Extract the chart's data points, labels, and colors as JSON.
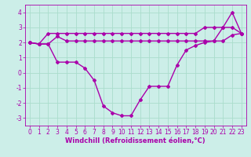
{
  "bg_color": "#cceee8",
  "grid_color": "#aaddcc",
  "line_color": "#aa00aa",
  "marker": "D",
  "markersize": 2.0,
  "linewidth": 1.0,
  "xlim": [
    -0.5,
    23.5
  ],
  "ylim": [
    -3.5,
    4.5
  ],
  "yticks": [
    -3,
    -2,
    -1,
    0,
    1,
    2,
    3,
    4
  ],
  "xticks": [
    0,
    1,
    2,
    3,
    4,
    5,
    6,
    7,
    8,
    9,
    10,
    11,
    12,
    13,
    14,
    15,
    16,
    17,
    18,
    19,
    20,
    21,
    22,
    23
  ],
  "xlabel": "Windchill (Refroidissement éolien,°C)",
  "xlabel_fontsize": 6.0,
  "tick_fontsize": 5.5,
  "series1_x": [
    0,
    1,
    2,
    3,
    4,
    5,
    6,
    7,
    8,
    9,
    10,
    11,
    12,
    13,
    14,
    15,
    16,
    17,
    18,
    19,
    20,
    21,
    22,
    23
  ],
  "series1_y": [
    2.0,
    1.9,
    2.6,
    2.6,
    2.6,
    2.6,
    2.6,
    2.6,
    2.6,
    2.6,
    2.6,
    2.6,
    2.6,
    2.6,
    2.6,
    2.6,
    2.6,
    2.6,
    2.6,
    3.0,
    3.0,
    3.0,
    3.0,
    2.6
  ],
  "series2_x": [
    0,
    1,
    2,
    3,
    4,
    5,
    6,
    7,
    8,
    9,
    10,
    11,
    12,
    13,
    14,
    15,
    16,
    17,
    18,
    19,
    20,
    21,
    22,
    23
  ],
  "series2_y": [
    2.0,
    1.9,
    1.9,
    2.4,
    2.1,
    2.1,
    2.1,
    2.1,
    2.1,
    2.1,
    2.1,
    2.1,
    2.1,
    2.1,
    2.1,
    2.1,
    2.1,
    2.1,
    2.1,
    2.1,
    2.1,
    2.1,
    2.5,
    2.6
  ],
  "series3_x": [
    0,
    1,
    2,
    3,
    4,
    5,
    6,
    7,
    8,
    9,
    10,
    11,
    12,
    13,
    14,
    15,
    16,
    17,
    18,
    19,
    20,
    21,
    22,
    23
  ],
  "series3_y": [
    2.0,
    1.9,
    1.9,
    0.7,
    0.7,
    0.7,
    0.3,
    -0.5,
    -2.2,
    -2.65,
    -2.85,
    -2.85,
    -1.8,
    -0.9,
    -0.9,
    -0.9,
    0.5,
    1.5,
    1.8,
    2.0,
    2.1,
    3.0,
    4.0,
    2.6
  ]
}
